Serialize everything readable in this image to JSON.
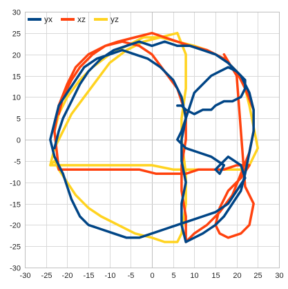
{
  "chart_data": {
    "type": "line",
    "title": "",
    "xlabel": "",
    "ylabel": "",
    "xlim": [
      -30,
      30
    ],
    "ylim": [
      -30,
      30
    ],
    "xticks": [
      -30,
      -25,
      -20,
      -15,
      -10,
      -5,
      0,
      5,
      10,
      15,
      20,
      25,
      30
    ],
    "yticks": [
      -30,
      -25,
      -20,
      -15,
      -10,
      -5,
      0,
      5,
      10,
      15,
      20,
      25,
      30
    ],
    "grid": true,
    "legend_position": "top-left",
    "series": [
      {
        "name": "yz",
        "color": "#ffd320",
        "x": [
          -24,
          -23,
          -21,
          -19,
          -16,
          -13,
          -10,
          -6,
          -2,
          2,
          6,
          8,
          8,
          7,
          7,
          8,
          8,
          7,
          6,
          3,
          0,
          -4,
          -8,
          -12,
          -15,
          -18,
          -20,
          -22,
          -23,
          -24,
          -23,
          -20,
          -15,
          -10,
          -5,
          0,
          5,
          9,
          13,
          17,
          21,
          23,
          25,
          24,
          23,
          22,
          20,
          17,
          13,
          10,
          6,
          2,
          -2,
          -6,
          -10,
          -14,
          -17,
          -20,
          -22,
          -23
        ],
        "y": [
          -6,
          -2,
          2,
          6,
          10,
          14,
          18,
          21,
          23,
          24,
          25,
          20,
          12,
          5,
          0,
          -8,
          -15,
          -22,
          -24,
          -24,
          -23,
          -22,
          -20,
          -18,
          -16,
          -13,
          -10,
          -7,
          -5,
          -6,
          -6,
          -6,
          -6,
          -6,
          -6,
          -6,
          -7,
          -7,
          -7,
          -7,
          -7,
          -6,
          -2,
          3,
          8,
          12,
          16,
          19,
          21,
          22,
          23,
          24,
          24,
          22,
          20,
          17,
          14,
          10,
          6,
          2
        ]
      },
      {
        "name": "xz",
        "color": "#ff420e",
        "x": [
          -22,
          -21,
          -19,
          -17,
          -14,
          -11,
          -8,
          -4,
          0,
          3,
          6,
          9,
          13,
          17,
          20,
          22,
          24,
          24,
          23,
          21,
          19,
          16,
          13,
          10,
          8,
          8,
          7,
          7,
          8,
          8,
          6,
          3,
          0,
          -3,
          -7,
          -11,
          -15,
          -18,
          -20,
          -22,
          -23,
          -22,
          -19,
          -15,
          -11,
          -7,
          -3,
          1,
          5,
          8,
          11,
          14,
          17,
          20,
          22,
          23,
          21,
          18,
          16,
          15,
          16,
          18,
          21,
          23,
          24,
          22,
          20,
          17
        ],
        "y": [
          6,
          10,
          14,
          17,
          20,
          22,
          23,
          24,
          25,
          24,
          23,
          22,
          21,
          19,
          16,
          12,
          7,
          2,
          -3,
          -8,
          -13,
          -17,
          -20,
          -22,
          -24,
          -18,
          -12,
          -6,
          0,
          6,
          12,
          16,
          20,
          22,
          23,
          22,
          20,
          17,
          13,
          8,
          2,
          -7,
          -7,
          -7,
          -7,
          -7,
          -7,
          -8,
          -8,
          -8,
          -7,
          -7,
          -7,
          -6,
          -6,
          -6,
          -9,
          -12,
          -16,
          -20,
          -22,
          -23,
          -22,
          -20,
          -15,
          -11,
          15,
          20
        ]
      },
      {
        "name": "yx",
        "color": "#004586",
        "x": [
          -23,
          -22,
          -21,
          -19,
          -17,
          -15,
          -12,
          -9,
          -6,
          -3,
          0,
          3,
          6,
          9,
          12,
          15,
          18,
          21,
          23,
          24,
          24,
          23,
          22,
          21,
          19,
          17,
          15,
          12,
          10,
          8,
          7,
          7,
          8,
          7,
          7,
          8,
          7,
          5,
          2,
          -1,
          -4,
          -7,
          -10,
          -13,
          -16,
          -18,
          -20,
          -22,
          -23,
          -24,
          -23,
          -21,
          -20,
          -19,
          -18,
          -17,
          -15,
          -12,
          -9,
          -6,
          -3,
          0,
          3,
          6,
          9,
          12,
          15,
          18,
          20,
          22,
          21,
          18,
          16,
          15,
          16,
          17,
          14,
          11,
          8,
          6,
          7,
          8,
          9,
          10,
          12,
          14,
          16,
          18,
          20,
          22,
          22,
          21,
          19,
          17,
          15,
          15,
          14,
          12,
          10,
          8,
          7,
          6
        ],
        "y": [
          -2,
          2,
          5,
          9,
          13,
          16,
          19,
          21,
          22,
          23,
          22,
          23,
          22,
          22,
          21,
          20,
          18,
          15,
          11,
          7,
          2,
          -3,
          -8,
          -12,
          -15,
          -18,
          -20,
          -22,
          -23,
          -24,
          -20,
          -15,
          -10,
          -5,
          0,
          5,
          10,
          14,
          17,
          19,
          20,
          21,
          20,
          19,
          17,
          14,
          11,
          8,
          4,
          0,
          -4,
          -8,
          -11,
          -14,
          -16,
          -18,
          -20,
          -21,
          -22,
          -23,
          -23,
          -22,
          -21,
          -20,
          -19,
          -18,
          -17,
          -15,
          -12,
          -9,
          -6,
          -4,
          -6,
          -7,
          -8,
          -6,
          -4,
          -3,
          -2,
          0,
          2,
          5,
          8,
          11,
          13,
          15,
          16,
          17,
          16,
          14,
          12,
          10,
          9,
          9,
          8,
          8,
          7,
          7,
          6,
          7,
          8,
          8
        ]
      }
    ],
    "legend_order": [
      "yx",
      "xz",
      "yz"
    ]
  }
}
